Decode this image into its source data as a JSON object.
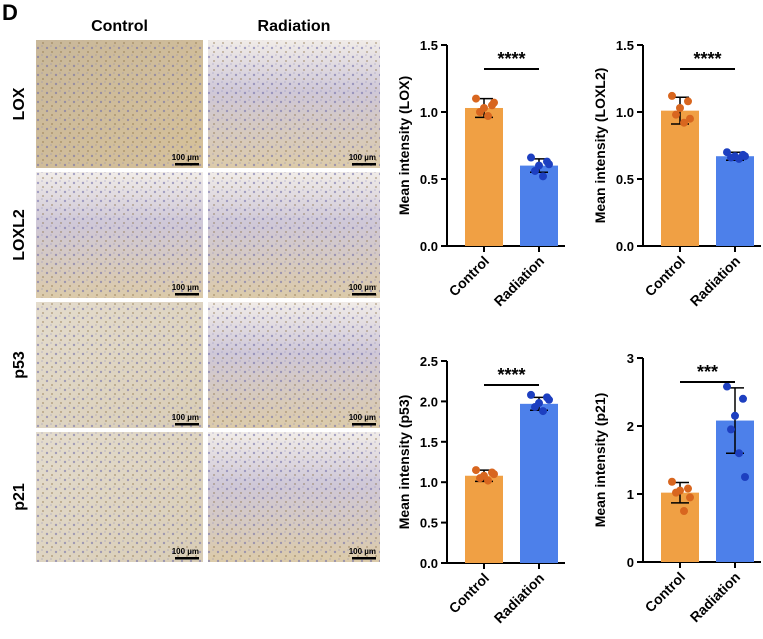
{
  "panel_label": "D",
  "image_grid": {
    "columns": [
      "Control",
      "Radiation"
    ],
    "rows": [
      "LOX",
      "LOXL2",
      "p53",
      "p21"
    ],
    "scale_bar": "100 µm"
  },
  "chart_data": [
    {
      "type": "bar",
      "ylabel": "Mean intensity (LOX)",
      "categories": [
        "Control",
        "Radiation"
      ],
      "values": [
        1.03,
        0.6
      ],
      "errors": [
        0.07,
        0.05
      ],
      "points": [
        [
          1.1,
          1.05,
          1.03,
          1.0,
          0.97,
          1.07
        ],
        [
          0.66,
          0.63,
          0.6,
          0.56,
          0.52,
          0.61
        ]
      ],
      "bar_colors": [
        "#f0a044",
        "#4d80ea"
      ],
      "point_colors": [
        "#d8661f",
        "#1d3fc0"
      ],
      "ylim": [
        0,
        1.5
      ],
      "yticks": [
        {
          "value": 0,
          "label": "0.0"
        },
        0.5,
        {
          "value": 1,
          "label": "1.0"
        },
        1.5
      ],
      "significance": "****"
    },
    {
      "type": "bar",
      "ylabel": "Mean intensity (LOXL2)",
      "categories": [
        "Control",
        "Radiation"
      ],
      "values": [
        1.01,
        0.67
      ],
      "errors": [
        0.1,
        0.03
      ],
      "points": [
        [
          1.12,
          1.08,
          1.03,
          0.98,
          0.92,
          0.95
        ],
        [
          0.7,
          0.68,
          0.67,
          0.66,
          0.65,
          0.67
        ]
      ],
      "bar_colors": [
        "#f0a044",
        "#4d80ea"
      ],
      "point_colors": [
        "#d8661f",
        "#1d3fc0"
      ],
      "ylim": [
        0,
        1.5
      ],
      "yticks": [
        {
          "value": 0,
          "label": "0.0"
        },
        0.5,
        {
          "value": 1,
          "label": "1.0"
        },
        1.5
      ],
      "significance": "****"
    },
    {
      "type": "bar",
      "ylabel": "Mean intensity (p53)",
      "categories": [
        "Control",
        "Radiation"
      ],
      "values": [
        1.08,
        1.97
      ],
      "errors": [
        0.07,
        0.08
      ],
      "points": [
        [
          1.15,
          1.12,
          1.08,
          1.05,
          1.02,
          1.1
        ],
        [
          2.08,
          2.05,
          1.98,
          1.93,
          1.88,
          2.02
        ]
      ],
      "bar_colors": [
        "#f0a044",
        "#4d80ea"
      ],
      "point_colors": [
        "#d8661f",
        "#1d3fc0"
      ],
      "ylim": [
        0,
        2.5
      ],
      "yticks": [
        {
          "value": 0,
          "label": "0.0"
        },
        0.5,
        {
          "value": 1,
          "label": "1.0"
        },
        1.5,
        {
          "value": 2,
          "label": "2.0"
        },
        2.5
      ],
      "significance": "****"
    },
    {
      "type": "bar",
      "ylabel": "Mean intensity (p21)",
      "categories": [
        "Control",
        "Radiation"
      ],
      "values": [
        1.02,
        2.08
      ],
      "errors": [
        0.15,
        0.48
      ],
      "points": [
        [
          1.18,
          1.08,
          1.05,
          1.02,
          0.75,
          0.95
        ],
        [
          2.58,
          2.4,
          2.15,
          1.95,
          1.6,
          1.25
        ]
      ],
      "bar_colors": [
        "#f0a044",
        "#4d80ea"
      ],
      "point_colors": [
        "#d8661f",
        "#1d3fc0"
      ],
      "ylim": [
        0,
        3
      ],
      "yticks": [
        0,
        1,
        2,
        3
      ],
      "significance": "***"
    }
  ]
}
